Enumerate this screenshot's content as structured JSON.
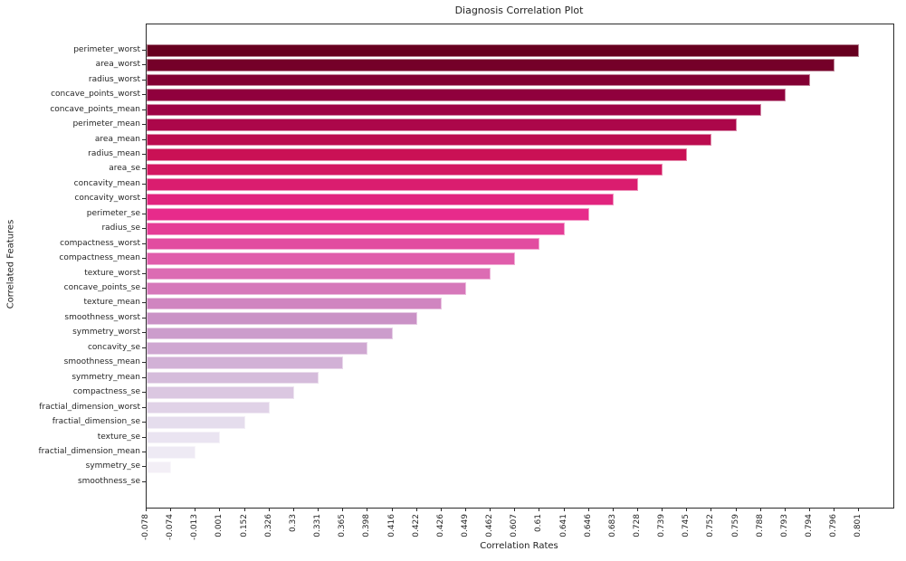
{
  "page": {
    "background": "#ffffff"
  },
  "chart_data": {
    "type": "bar",
    "orientation": "horizontal",
    "title": "Diagnosis Correlation Plot",
    "xlabel": "Correlation Rates",
    "ylabel": "Correlated Features",
    "grid": false,
    "legend": false,
    "categories": [
      "perimeter_worst",
      "area_worst",
      "radius_worst",
      "concave_points_worst",
      "concave_points_mean",
      "perimeter_mean",
      "area_mean",
      "radius_mean",
      "area_se",
      "concavity_mean",
      "concavity_worst",
      "perimeter_se",
      "radius_se",
      "compactness_worst",
      "compactness_mean",
      "texture_worst",
      "concave_points_se",
      "texture_mean",
      "smoothness_worst",
      "symmetry_worst",
      "concavity_se",
      "smoothness_mean",
      "symmetry_mean",
      "compactness_se",
      "fractial_dimension_worst",
      "fractial_dimension_se",
      "texture_se",
      "fractial_dimension_mean",
      "symmetry_se",
      "smoothness_se"
    ],
    "values": [
      0.801,
      0.796,
      0.794,
      0.793,
      0.788,
      0.759,
      0.752,
      0.745,
      0.739,
      0.728,
      0.683,
      0.646,
      0.641,
      0.61,
      0.607,
      0.462,
      0.449,
      0.426,
      0.422,
      0.416,
      0.398,
      0.365,
      0.331,
      0.33,
      0.326,
      0.152,
      0.001,
      -0.013,
      -0.074,
      -0.078
    ],
    "x_tick_labels": [
      "-0.078",
      "-0.074",
      "-0.013",
      "0.001",
      "0.152",
      "0.326",
      "0.33",
      "0.331",
      "0.365",
      "0.398",
      "0.416",
      "0.422",
      "0.426",
      "0.449",
      "0.462",
      "0.607",
      "0.61",
      "0.641",
      "0.646",
      "0.683",
      "0.728",
      "0.739",
      "0.745",
      "0.752",
      "0.759",
      "0.788",
      "0.793",
      "0.794",
      "0.796",
      "0.801"
    ],
    "bar_colors": [
      "#67001f",
      "#750029",
      "#820033",
      "#90003d",
      "#9e0245",
      "#ac074a",
      "#bb0c4f",
      "#ca1155",
      "#d31761",
      "#da1d6f",
      "#e1247e",
      "#e72b8b",
      "#e53c96",
      "#e24ca0",
      "#e05dab",
      "#dc6cb3",
      "#d678ba",
      "#d085c0",
      "#ca92c6",
      "#cc9dcc",
      "#cfa7d1",
      "#d2b1d6",
      "#d5bcdb",
      "#dbc7e1",
      "#e0d2e7",
      "#e5dded",
      "#eae4f1",
      "#eeeaf4",
      "#f3eff6",
      "#f7f4f9"
    ],
    "axis_style": {
      "spine_color": "#2b2b2b",
      "x_tick_label_rotation_deg": 90,
      "x_axis_note": "categorical axis: 30 evenly spaced ticks, one per sorted correlation value; each bar ends at the tick of its own value"
    }
  }
}
